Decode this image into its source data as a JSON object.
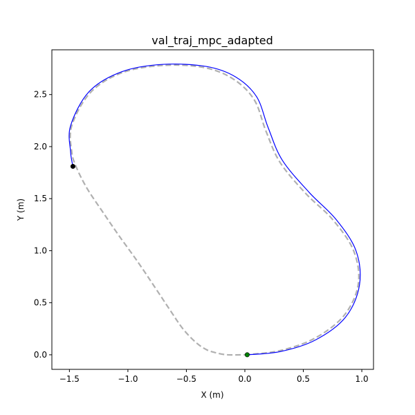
{
  "chart_data": {
    "type": "line",
    "title": "val_traj_mpc_adapted",
    "xlabel": "X (m)",
    "ylabel": "Y (m)",
    "xlim": [
      -1.65,
      1.1
    ],
    "ylim": [
      -0.14,
      2.93
    ],
    "xticks": [
      -1.5,
      -1.0,
      -0.5,
      0.0,
      0.5,
      1.0
    ],
    "xtick_labels": [
      "−1.5",
      "−1.0",
      "−0.5",
      "0.0",
      "0.5",
      "1.0"
    ],
    "yticks": [
      0.0,
      0.5,
      1.0,
      1.5,
      2.0,
      2.5
    ],
    "ytick_labels": [
      "0.0",
      "0.5",
      "1.0",
      "1.5",
      "2.0",
      "2.5"
    ],
    "grid": false,
    "legend": "none",
    "series": [
      {
        "style": "dashed",
        "color": "#b0b0b0",
        "x": [
          0.0,
          0.3,
          0.6,
          0.85,
          0.97,
          0.93,
          0.75,
          0.52,
          0.3,
          0.18,
          0.08,
          -0.1,
          -0.35,
          -0.7,
          -1.05,
          -1.32,
          -1.48,
          -1.48,
          -1.44,
          -1.35,
          -1.22,
          -1.08,
          -0.92,
          -0.77,
          -0.64,
          -0.53,
          -0.42,
          -0.33,
          -0.25,
          -0.15,
          0.0
        ],
        "y": [
          0.0,
          0.04,
          0.16,
          0.38,
          0.68,
          1.0,
          1.3,
          1.55,
          1.85,
          2.15,
          2.45,
          2.65,
          2.76,
          2.78,
          2.71,
          2.52,
          2.2,
          1.95,
          1.8,
          1.6,
          1.38,
          1.15,
          0.9,
          0.65,
          0.43,
          0.25,
          0.12,
          0.05,
          0.02,
          0.0,
          0.0
        ]
      },
      {
        "style": "solid",
        "color": "#0000ff",
        "x": [
          0.02,
          0.3,
          0.6,
          0.86,
          0.98,
          0.95,
          0.78,
          0.55,
          0.32,
          0.2,
          0.1,
          -0.08,
          -0.33,
          -0.7,
          -1.05,
          -1.33,
          -1.49,
          -1.49,
          -1.47
        ],
        "y": [
          0.0,
          0.03,
          0.14,
          0.36,
          0.67,
          1.0,
          1.3,
          1.56,
          1.87,
          2.18,
          2.48,
          2.67,
          2.77,
          2.79,
          2.72,
          2.53,
          2.2,
          1.95,
          1.81
        ]
      }
    ],
    "markers": [
      {
        "x": 0.02,
        "y": 0.0,
        "color": "#008000"
      },
      {
        "x": -1.47,
        "y": 1.81,
        "color": "#000000"
      }
    ]
  }
}
